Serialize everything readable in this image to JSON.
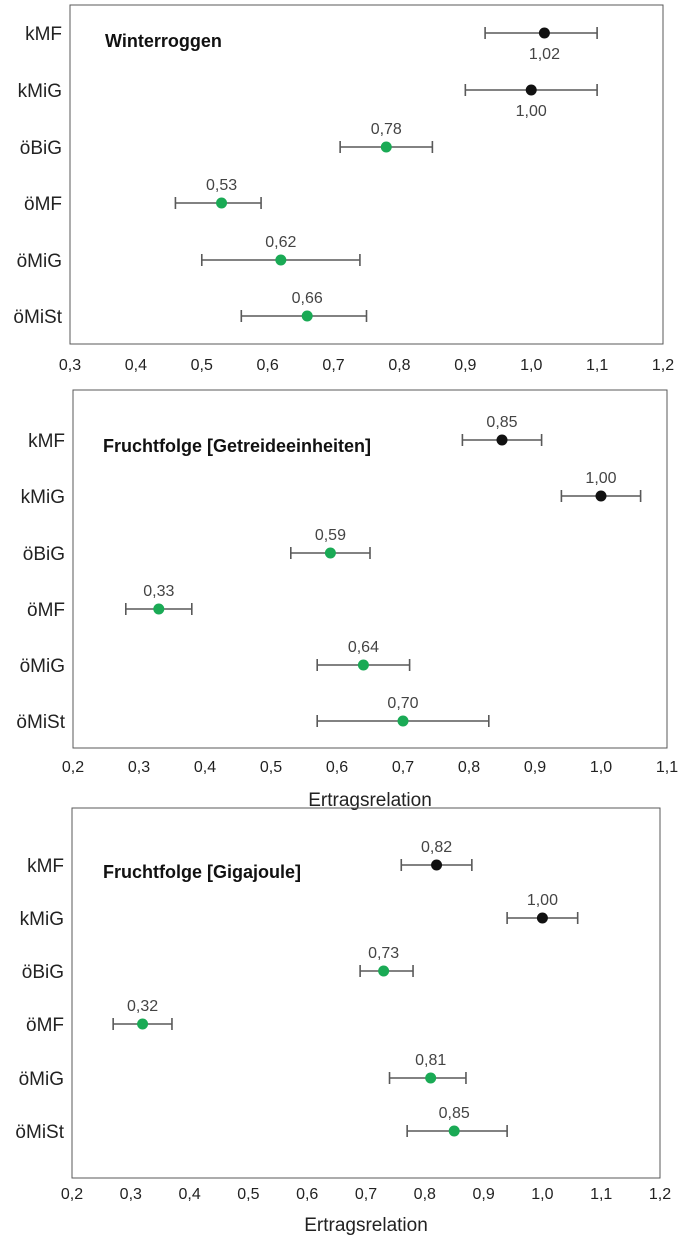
{
  "chart_data": [
    {
      "type": "scatter",
      "title": "Winterroggen",
      "xlabel": "",
      "xlim": [
        0.3,
        1.2
      ],
      "xticks": [
        "0,3",
        "0,4",
        "0,5",
        "0,6",
        "0,7",
        "0,8",
        "0,9",
        "1,0",
        "1,1",
        "1,2"
      ],
      "categories": [
        "kMF",
        "kMiG",
        "öBiG",
        "öMF",
        "öMiG",
        "öMiSt"
      ],
      "values": [
        1.02,
        1.0,
        0.78,
        0.53,
        0.62,
        0.66
      ],
      "value_labels": [
        "1,02",
        "1,00",
        "0,78",
        "0,53",
        "0,62",
        "0,66"
      ],
      "label_position": [
        "below",
        "below",
        "above",
        "above",
        "above",
        "above"
      ],
      "error_low": [
        0.93,
        0.9,
        0.71,
        0.46,
        0.5,
        0.56
      ],
      "error_high": [
        1.1,
        1.1,
        0.85,
        0.59,
        0.74,
        0.75
      ],
      "point_colors": [
        "#111111",
        "#111111",
        "#1aaa55",
        "#1aaa55",
        "#1aaa55",
        "#1aaa55"
      ],
      "grid": false
    },
    {
      "type": "scatter",
      "title": "Fruchtfolge [Getreideeinheiten]",
      "xlabel": "Ertragsrelation",
      "xlim": [
        0.2,
        1.1
      ],
      "xticks": [
        "0,2",
        "0,3",
        "0,4",
        "0,5",
        "0,6",
        "0,7",
        "0,8",
        "0,9",
        "1,0",
        "1,1"
      ],
      "categories": [
        "kMF",
        "kMiG",
        "öBiG",
        "öMF",
        "öMiG",
        "öMiSt"
      ],
      "values": [
        0.85,
        1.0,
        0.59,
        0.33,
        0.64,
        0.7
      ],
      "value_labels": [
        "0,85",
        "1,00",
        "0,59",
        "0,33",
        "0,64",
        "0,70"
      ],
      "label_position": [
        "above",
        "above",
        "above",
        "above",
        "above",
        "above"
      ],
      "error_low": [
        0.79,
        0.94,
        0.53,
        0.28,
        0.57,
        0.57
      ],
      "error_high": [
        0.91,
        1.06,
        0.65,
        0.38,
        0.71,
        0.83
      ],
      "point_colors": [
        "#111111",
        "#111111",
        "#1aaa55",
        "#1aaa55",
        "#1aaa55",
        "#1aaa55"
      ],
      "grid": false
    },
    {
      "type": "scatter",
      "title": "Fruchtfolge [Gigajoule]",
      "xlabel": "Ertragsrelation",
      "xlim": [
        0.2,
        1.2
      ],
      "xticks": [
        "0,2",
        "0,3",
        "0,4",
        "0,5",
        "0,6",
        "0,7",
        "0,8",
        "0,9",
        "1,0",
        "1,1",
        "1,2"
      ],
      "categories": [
        "kMF",
        "kMiG",
        "öBiG",
        "öMF",
        "öMiG",
        "öMiSt"
      ],
      "values": [
        0.82,
        1.0,
        0.73,
        0.32,
        0.81,
        0.85
      ],
      "value_labels": [
        "0,82",
        "1,00",
        "0,73",
        "0,32",
        "0,81",
        "0,85"
      ],
      "label_position": [
        "above",
        "above",
        "above",
        "above",
        "above",
        "above"
      ],
      "error_low": [
        0.76,
        0.94,
        0.69,
        0.27,
        0.74,
        0.77
      ],
      "error_high": [
        0.88,
        1.06,
        0.78,
        0.37,
        0.87,
        0.94
      ],
      "point_colors": [
        "#111111",
        "#111111",
        "#1aaa55",
        "#1aaa55",
        "#1aaa55",
        "#1aaa55"
      ],
      "grid": false
    }
  ]
}
